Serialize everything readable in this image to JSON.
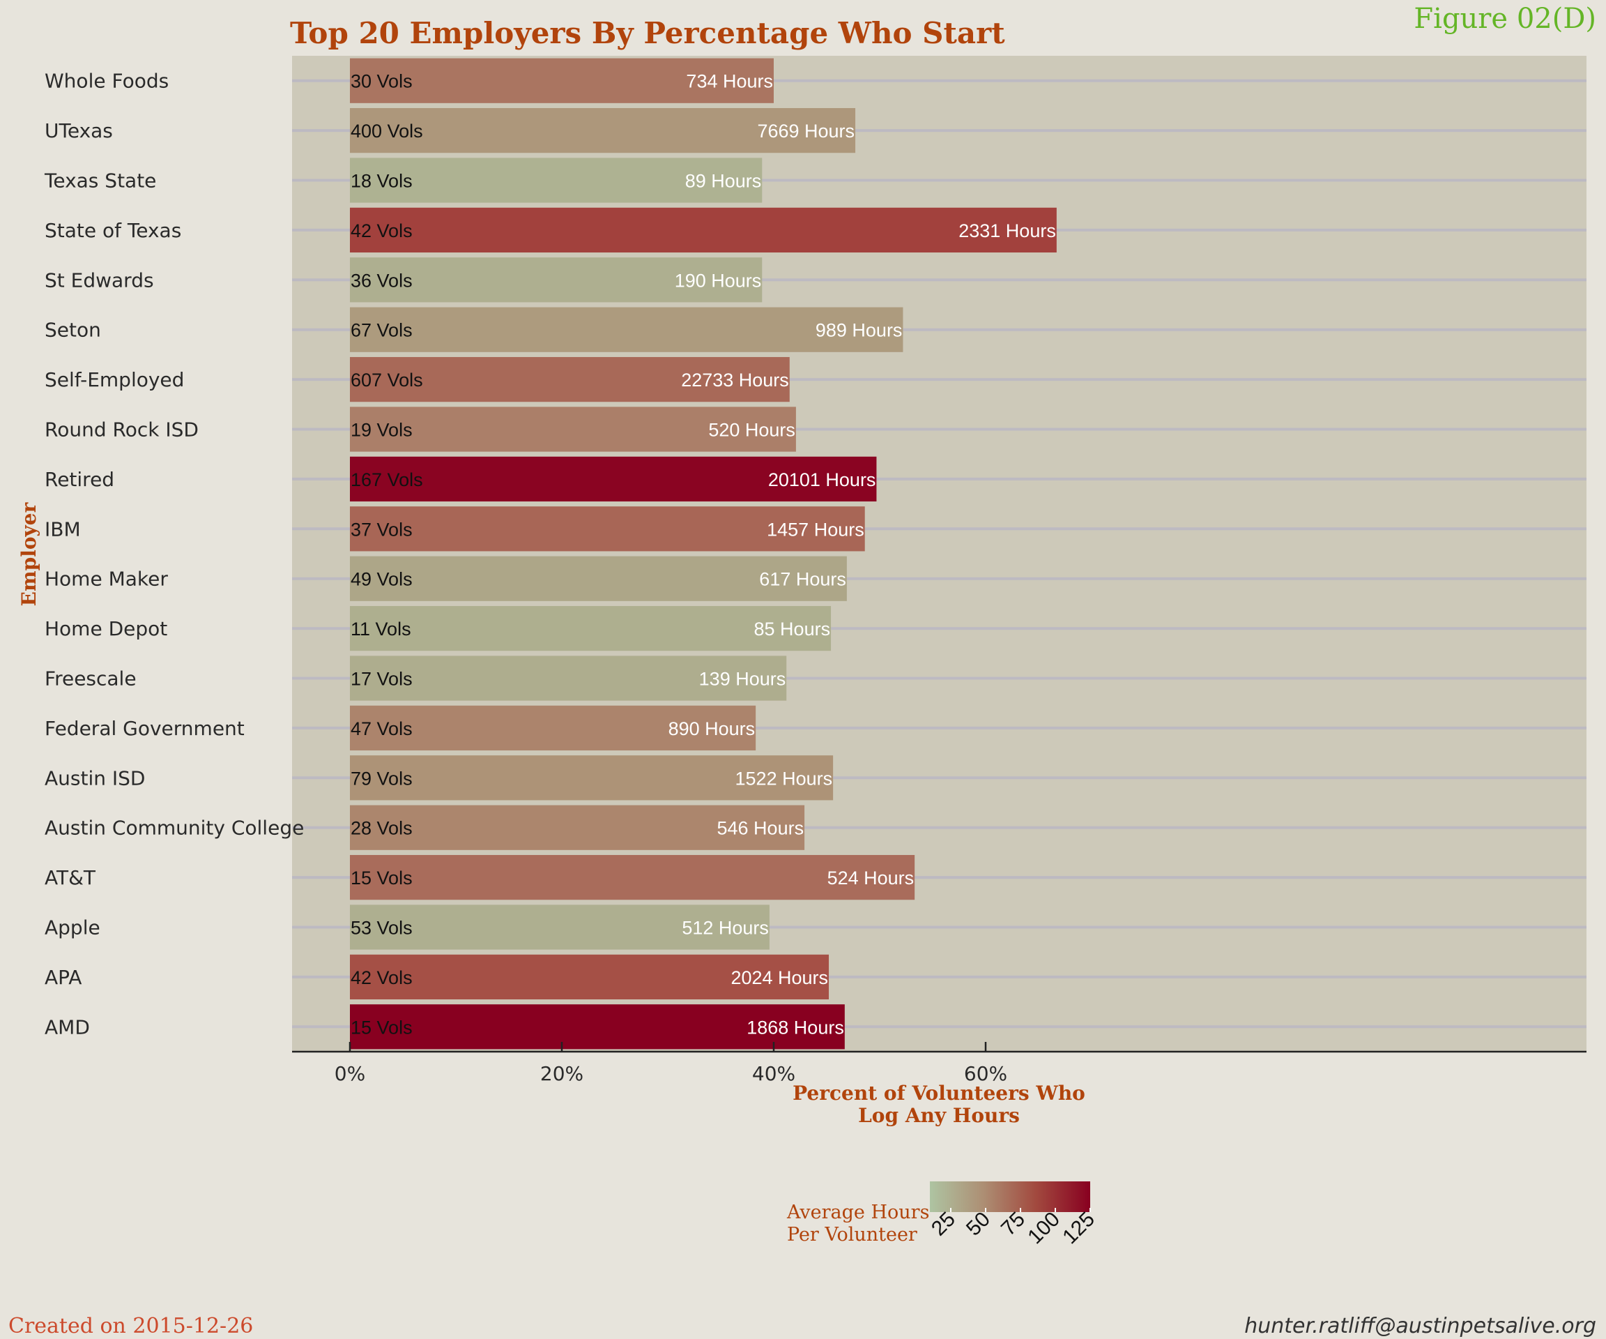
{
  "figure_label": "Figure 02(D)",
  "footer": {
    "created": "Created on 2015-12-26",
    "email": "hunter.ratliff@austinpetsalive.org"
  },
  "colors": {
    "page_bg": "#e7e4dc",
    "panel_bg": "#cdc9b9",
    "grid": "#c0bdc2",
    "title": "#b1440c",
    "figure_label": "#64b526",
    "created": "#cc4a2c",
    "low": "#aec4a2",
    "mid": "#ad8f74",
    "high": "#880020"
  },
  "chart_data": {
    "type": "bar",
    "orientation": "horizontal",
    "title": "Top 20 Employers By Percentage Who Start",
    "xlabel": "Percent of Volunteers Who\nLog Any Hours",
    "ylabel": "Employer",
    "xlim": [
      -3.3,
      70
    ],
    "x_ticks": [
      0,
      20,
      40,
      60
    ],
    "x_tick_labels": [
      "0%",
      "20%",
      "40%",
      "60%"
    ],
    "grid": true,
    "legend": {
      "title": "Average Hours\nPer Volunteer",
      "position": "bottom",
      "range": [
        10,
        125
      ],
      "ticks": [
        25,
        50,
        75,
        100,
        125
      ],
      "tick_labels": [
        "25",
        "50",
        "75",
        "100",
        "125"
      ]
    },
    "categories": [
      "Whole Foods",
      "UTexas",
      "Texas State",
      "State of Texas",
      "St Edwards",
      "Seton",
      "Self-Employed",
      "Round Rock ISD",
      "Retired",
      "IBM",
      "Home Maker",
      "Home Depot",
      "Freescale",
      "Federal Government",
      "Austin ISD",
      "Austin Community College",
      "AT&T",
      "Apple",
      "APA",
      "AMD"
    ],
    "values": [
      40.0,
      47.7,
      38.9,
      66.7,
      38.9,
      52.2,
      41.5,
      42.1,
      49.7,
      48.6,
      46.9,
      45.4,
      41.2,
      38.3,
      45.6,
      42.9,
      53.3,
      39.6,
      45.2,
      46.7
    ],
    "vols_labels": [
      "30 Vols",
      "400 Vols",
      "18 Vols",
      "42 Vols",
      "36 Vols",
      "67 Vols",
      "607 Vols",
      "19 Vols",
      "167 Vols",
      "37 Vols",
      "49 Vols",
      "11 Vols",
      "17 Vols",
      "47 Vols",
      "79 Vols",
      "28 Vols",
      "15 Vols",
      "53 Vols",
      "42 Vols",
      "15 Vols"
    ],
    "hours_labels": [
      "734 Hours",
      "7669 Hours",
      "89 Hours",
      "2331 Hours",
      "190 Hours",
      "989 Hours",
      "22733 Hours",
      "520 Hours",
      "20101 Hours",
      "1457 Hours",
      "617 Hours",
      "85 Hours",
      "139 Hours",
      "890 Hours",
      "1522 Hours",
      "546 Hours",
      "524 Hours",
      "512 Hours",
      "2024 Hours",
      "1868 Hours"
    ],
    "avg_hours": [
      61.2,
      40.0,
      21.9,
      92.5,
      23.7,
      37.3,
      68.7,
      54.7,
      122.8,
      70.2,
      29.5,
      24.1,
      24.9,
      51.6,
      42.5,
      50.6,
      66.4,
      23.9,
      83.7,
      127.5
    ]
  }
}
